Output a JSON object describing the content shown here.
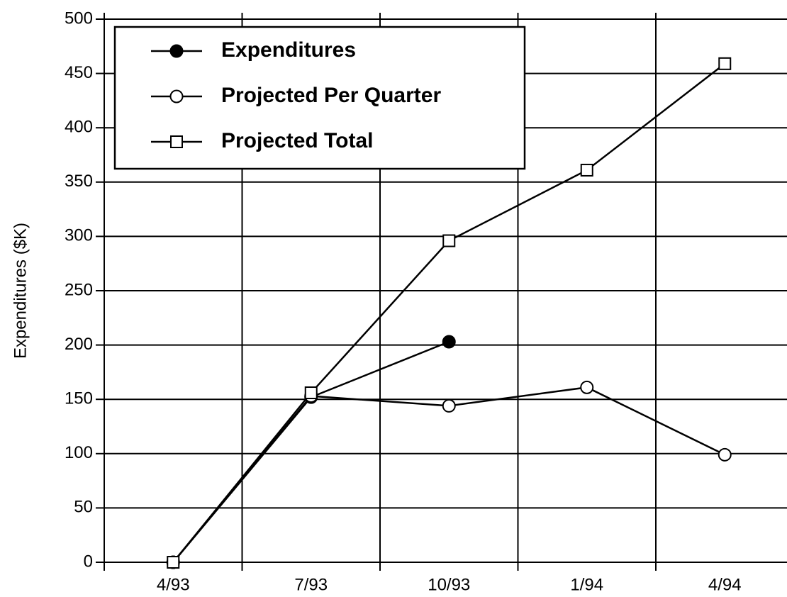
{
  "chart_data": {
    "type": "line",
    "y_label": "Expenditures ($K)",
    "categories": [
      "4/93",
      "7/93",
      "10/93",
      "1/94",
      "4/94"
    ],
    "series": [
      {
        "name": "Expenditures",
        "color": "#000000",
        "marker": "filled-circle",
        "values": [
          0,
          152,
          203,
          null,
          null
        ]
      },
      {
        "name": "Projected Per Quarter",
        "color": "#000000",
        "marker": "open-circle",
        "values": [
          0,
          153,
          144,
          161,
          99
        ]
      },
      {
        "name": "Projected Total",
        "color": "#000000",
        "marker": "open-square",
        "values": [
          0,
          156,
          296,
          361,
          459
        ]
      }
    ],
    "ylim": [
      0,
      500
    ],
    "yticks": [
      0,
      50,
      100,
      150,
      200,
      250,
      300,
      350,
      400,
      450,
      500
    ],
    "grid": true,
    "legend": "upper left"
  }
}
